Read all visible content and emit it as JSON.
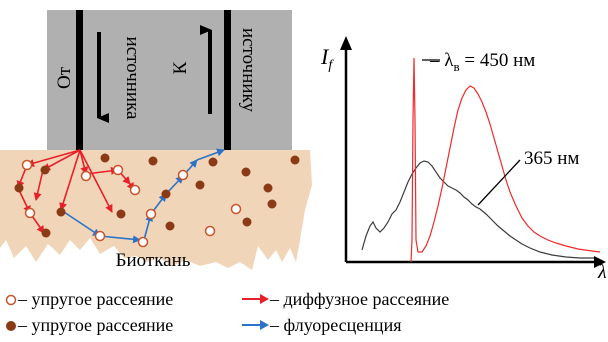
{
  "probe": {
    "left_label": "От",
    "left_label2": "источника",
    "right_label": "К",
    "right_label2": "источнику"
  },
  "tissue_label": "Биоткань",
  "spectrum": {
    "y_axis_label": "I",
    "y_axis_sub": "f",
    "x_axis_label": "λ",
    "annotation_excitation": "– λ",
    "annotation_excitation_sub": "в",
    "annotation_excitation_value": " = 450 нм",
    "annotation_365": "365 нм"
  },
  "legend": {
    "items": [
      {
        "symbol": "open-circle",
        "text": "– упругое рассеяние"
      },
      {
        "symbol": "red-arrow",
        "text": "– диффузное рассеяние"
      },
      {
        "symbol": "filled-circle",
        "text": "– упругое рассеяние"
      },
      {
        "symbol": "blue-arrow",
        "text": "– флуоресценция"
      }
    ]
  },
  "colors": {
    "probe_gray": "#b0b0b0",
    "tissue": "#f1d5b8",
    "scatter_red": "#e8202a",
    "fluor_blue": "#2a73c9",
    "filled_dot": "#8b3a16",
    "open_dot": "#c8542a",
    "spectrum_red": "#ef2a2a",
    "spectrum_black": "#3c3c3c"
  }
}
